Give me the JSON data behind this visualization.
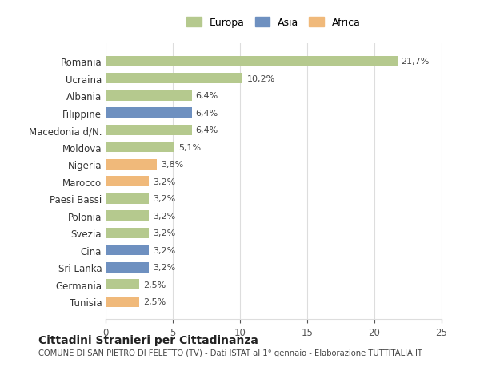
{
  "categories": [
    "Romania",
    "Ucraina",
    "Albania",
    "Filippine",
    "Macedonia d/N.",
    "Moldova",
    "Nigeria",
    "Marocco",
    "Paesi Bassi",
    "Polonia",
    "Svezia",
    "Cina",
    "Sri Lanka",
    "Germania",
    "Tunisia"
  ],
  "values": [
    21.7,
    10.2,
    6.4,
    6.4,
    6.4,
    5.1,
    3.8,
    3.2,
    3.2,
    3.2,
    3.2,
    3.2,
    3.2,
    2.5,
    2.5
  ],
  "labels": [
    "21,7%",
    "10,2%",
    "6,4%",
    "6,4%",
    "6,4%",
    "5,1%",
    "3,8%",
    "3,2%",
    "3,2%",
    "3,2%",
    "3,2%",
    "3,2%",
    "3,2%",
    "2,5%",
    "2,5%"
  ],
  "continents": [
    "Europa",
    "Europa",
    "Europa",
    "Asia",
    "Europa",
    "Europa",
    "Africa",
    "Africa",
    "Europa",
    "Europa",
    "Europa",
    "Asia",
    "Asia",
    "Europa",
    "Africa"
  ],
  "colors": {
    "Europa": "#b5c98e",
    "Asia": "#6e90c0",
    "Africa": "#f0b97a"
  },
  "legend": {
    "Europa": "#b5c98e",
    "Asia": "#6e90c0",
    "Africa": "#f0b97a"
  },
  "xlim": [
    0,
    25
  ],
  "xticks": [
    0,
    5,
    10,
    15,
    20,
    25
  ],
  "title": "Cittadini Stranieri per Cittadinanza",
  "subtitle": "COMUNE DI SAN PIETRO DI FELETTO (TV) - Dati ISTAT al 1° gennaio - Elaborazione TUTTITALIA.IT",
  "bg_color": "#ffffff",
  "grid_color": "#dddddd",
  "bar_height": 0.6
}
